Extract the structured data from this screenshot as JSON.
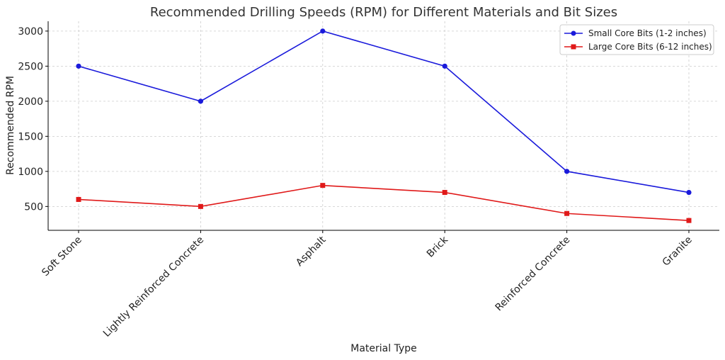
{
  "chart_data": {
    "type": "line",
    "title": "Recommended Drilling Speeds (RPM) for Different Materials and Bit Sizes",
    "xlabel": "Material Type",
    "ylabel": "Recommended RPM",
    "categories": [
      "Soft Stone",
      "Lightly Reinforced Concrete",
      "Asphalt",
      "Brick",
      "Reinforced Concrete",
      "Granite"
    ],
    "series": [
      {
        "name": "Small Core Bits (1-2 inches)",
        "values": [
          2500,
          2000,
          3000,
          2500,
          1000,
          700
        ],
        "color": "#1a1adb",
        "marker": "circle"
      },
      {
        "name": "Large Core Bits (6-12 inches)",
        "values": [
          600,
          500,
          800,
          700,
          400,
          300
        ],
        "color": "#e01919",
        "marker": "square"
      }
    ],
    "ylim": [
      160,
      3140
    ],
    "yticks": [
      500,
      1000,
      1500,
      2000,
      2500,
      3000
    ],
    "grid": true,
    "legend": "top-right"
  }
}
